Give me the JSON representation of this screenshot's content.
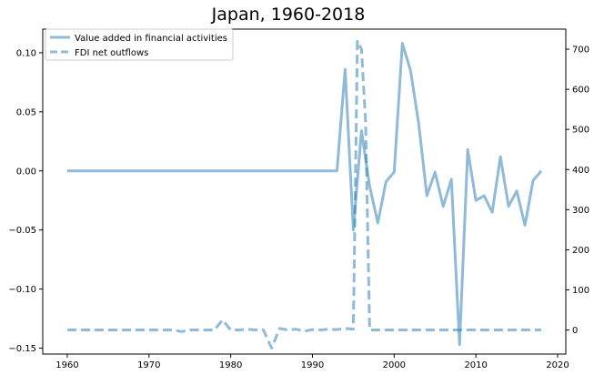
{
  "chart_data": {
    "type": "line",
    "title": "Japan, 1960-2018",
    "xlabel": "",
    "ylabel_left": "",
    "ylabel_right": "",
    "xlim": [
      1957,
      2021
    ],
    "ylim_left": [
      -0.155,
      0.12
    ],
    "ylim_right": [
      -60,
      750
    ],
    "x_ticks": [
      1960,
      1970,
      1980,
      1990,
      2000,
      2010,
      2020
    ],
    "x_tick_labels": [
      "1960",
      "1970",
      "1980",
      "1990",
      "2000",
      "2010",
      "2020"
    ],
    "y_left_ticks": [
      0.1,
      0.05,
      0.0,
      -0.05,
      -0.1,
      -0.15
    ],
    "y_left_tick_labels": [
      "0.10",
      "0.05",
      "0.00",
      "−0.05",
      "−0.10",
      "−0.15"
    ],
    "y_right_ticks": [
      700,
      600,
      500,
      400,
      300,
      200,
      100,
      0
    ],
    "y_right_tick_labels": [
      "700",
      "600",
      "500",
      "400",
      "300",
      "200",
      "100",
      "0"
    ],
    "grid": false,
    "legend_position": "top-left",
    "colors": {
      "series": "#1f77b4"
    },
    "series": [
      {
        "name": "Value added in financial activities",
        "axis": "left",
        "style": "solid",
        "x": [
          1960,
          1961,
          1962,
          1963,
          1964,
          1965,
          1966,
          1967,
          1968,
          1969,
          1970,
          1971,
          1972,
          1973,
          1974,
          1975,
          1976,
          1977,
          1978,
          1979,
          1980,
          1981,
          1982,
          1983,
          1984,
          1985,
          1986,
          1987,
          1988,
          1989,
          1990,
          1991,
          1992,
          1993,
          1994,
          1995,
          1996,
          1997,
          1998,
          1999,
          2000,
          2001,
          2002,
          2003,
          2004,
          2005,
          2006,
          2007,
          2008,
          2009,
          2010,
          2011,
          2012,
          2013,
          2014,
          2015,
          2016,
          2017,
          2018
        ],
        "y": [
          0,
          0,
          0,
          0,
          0,
          0,
          0,
          0,
          0,
          0,
          0,
          0,
          0,
          0,
          0,
          0,
          0,
          0,
          0,
          0,
          0,
          0,
          0,
          0,
          0,
          0,
          0,
          0,
          0,
          0,
          0,
          0,
          0,
          0,
          0.086,
          -0.05,
          0.034,
          -0.013,
          -0.044,
          -0.009,
          -0.001,
          0.108,
          0.085,
          0.04,
          -0.021,
          -0.001,
          -0.03,
          -0.007,
          -0.147,
          0.018,
          -0.025,
          -0.021,
          -0.035,
          0.012,
          -0.03,
          -0.017,
          -0.046,
          -0.008,
          0
        ]
      },
      {
        "name": "FDI net outflows",
        "axis": "right",
        "style": "dashed",
        "x": [
          1960,
          1961,
          1962,
          1963,
          1964,
          1965,
          1966,
          1967,
          1968,
          1969,
          1970,
          1971,
          1972,
          1973,
          1974,
          1975,
          1976,
          1977,
          1978,
          1979,
          1980,
          1981,
          1982,
          1983,
          1984,
          1985,
          1986,
          1987,
          1988,
          1989,
          1990,
          1991,
          1992,
          1993,
          1994,
          1995,
          1995.5,
          1996,
          1996.5,
          1997,
          1998,
          1999,
          2000,
          2001,
          2002,
          2003,
          2004,
          2005,
          2006,
          2007,
          2008,
          2009,
          2010,
          2011,
          2012,
          2013,
          2014,
          2015,
          2016,
          2017,
          2018
        ],
        "y": [
          0,
          0,
          0,
          0,
          0,
          0,
          0,
          0,
          0,
          0,
          0,
          0,
          0,
          0,
          -4,
          0,
          0,
          0,
          0,
          25,
          0,
          0,
          2,
          0,
          0,
          -45,
          4,
          0,
          2,
          -3,
          1,
          0,
          2,
          1,
          4,
          2,
          720,
          700,
          520,
          0,
          0,
          0,
          0,
          0,
          0,
          0,
          0,
          0,
          0,
          0,
          0,
          0,
          0,
          0,
          0,
          0,
          0,
          0,
          0,
          0,
          0
        ]
      }
    ]
  }
}
